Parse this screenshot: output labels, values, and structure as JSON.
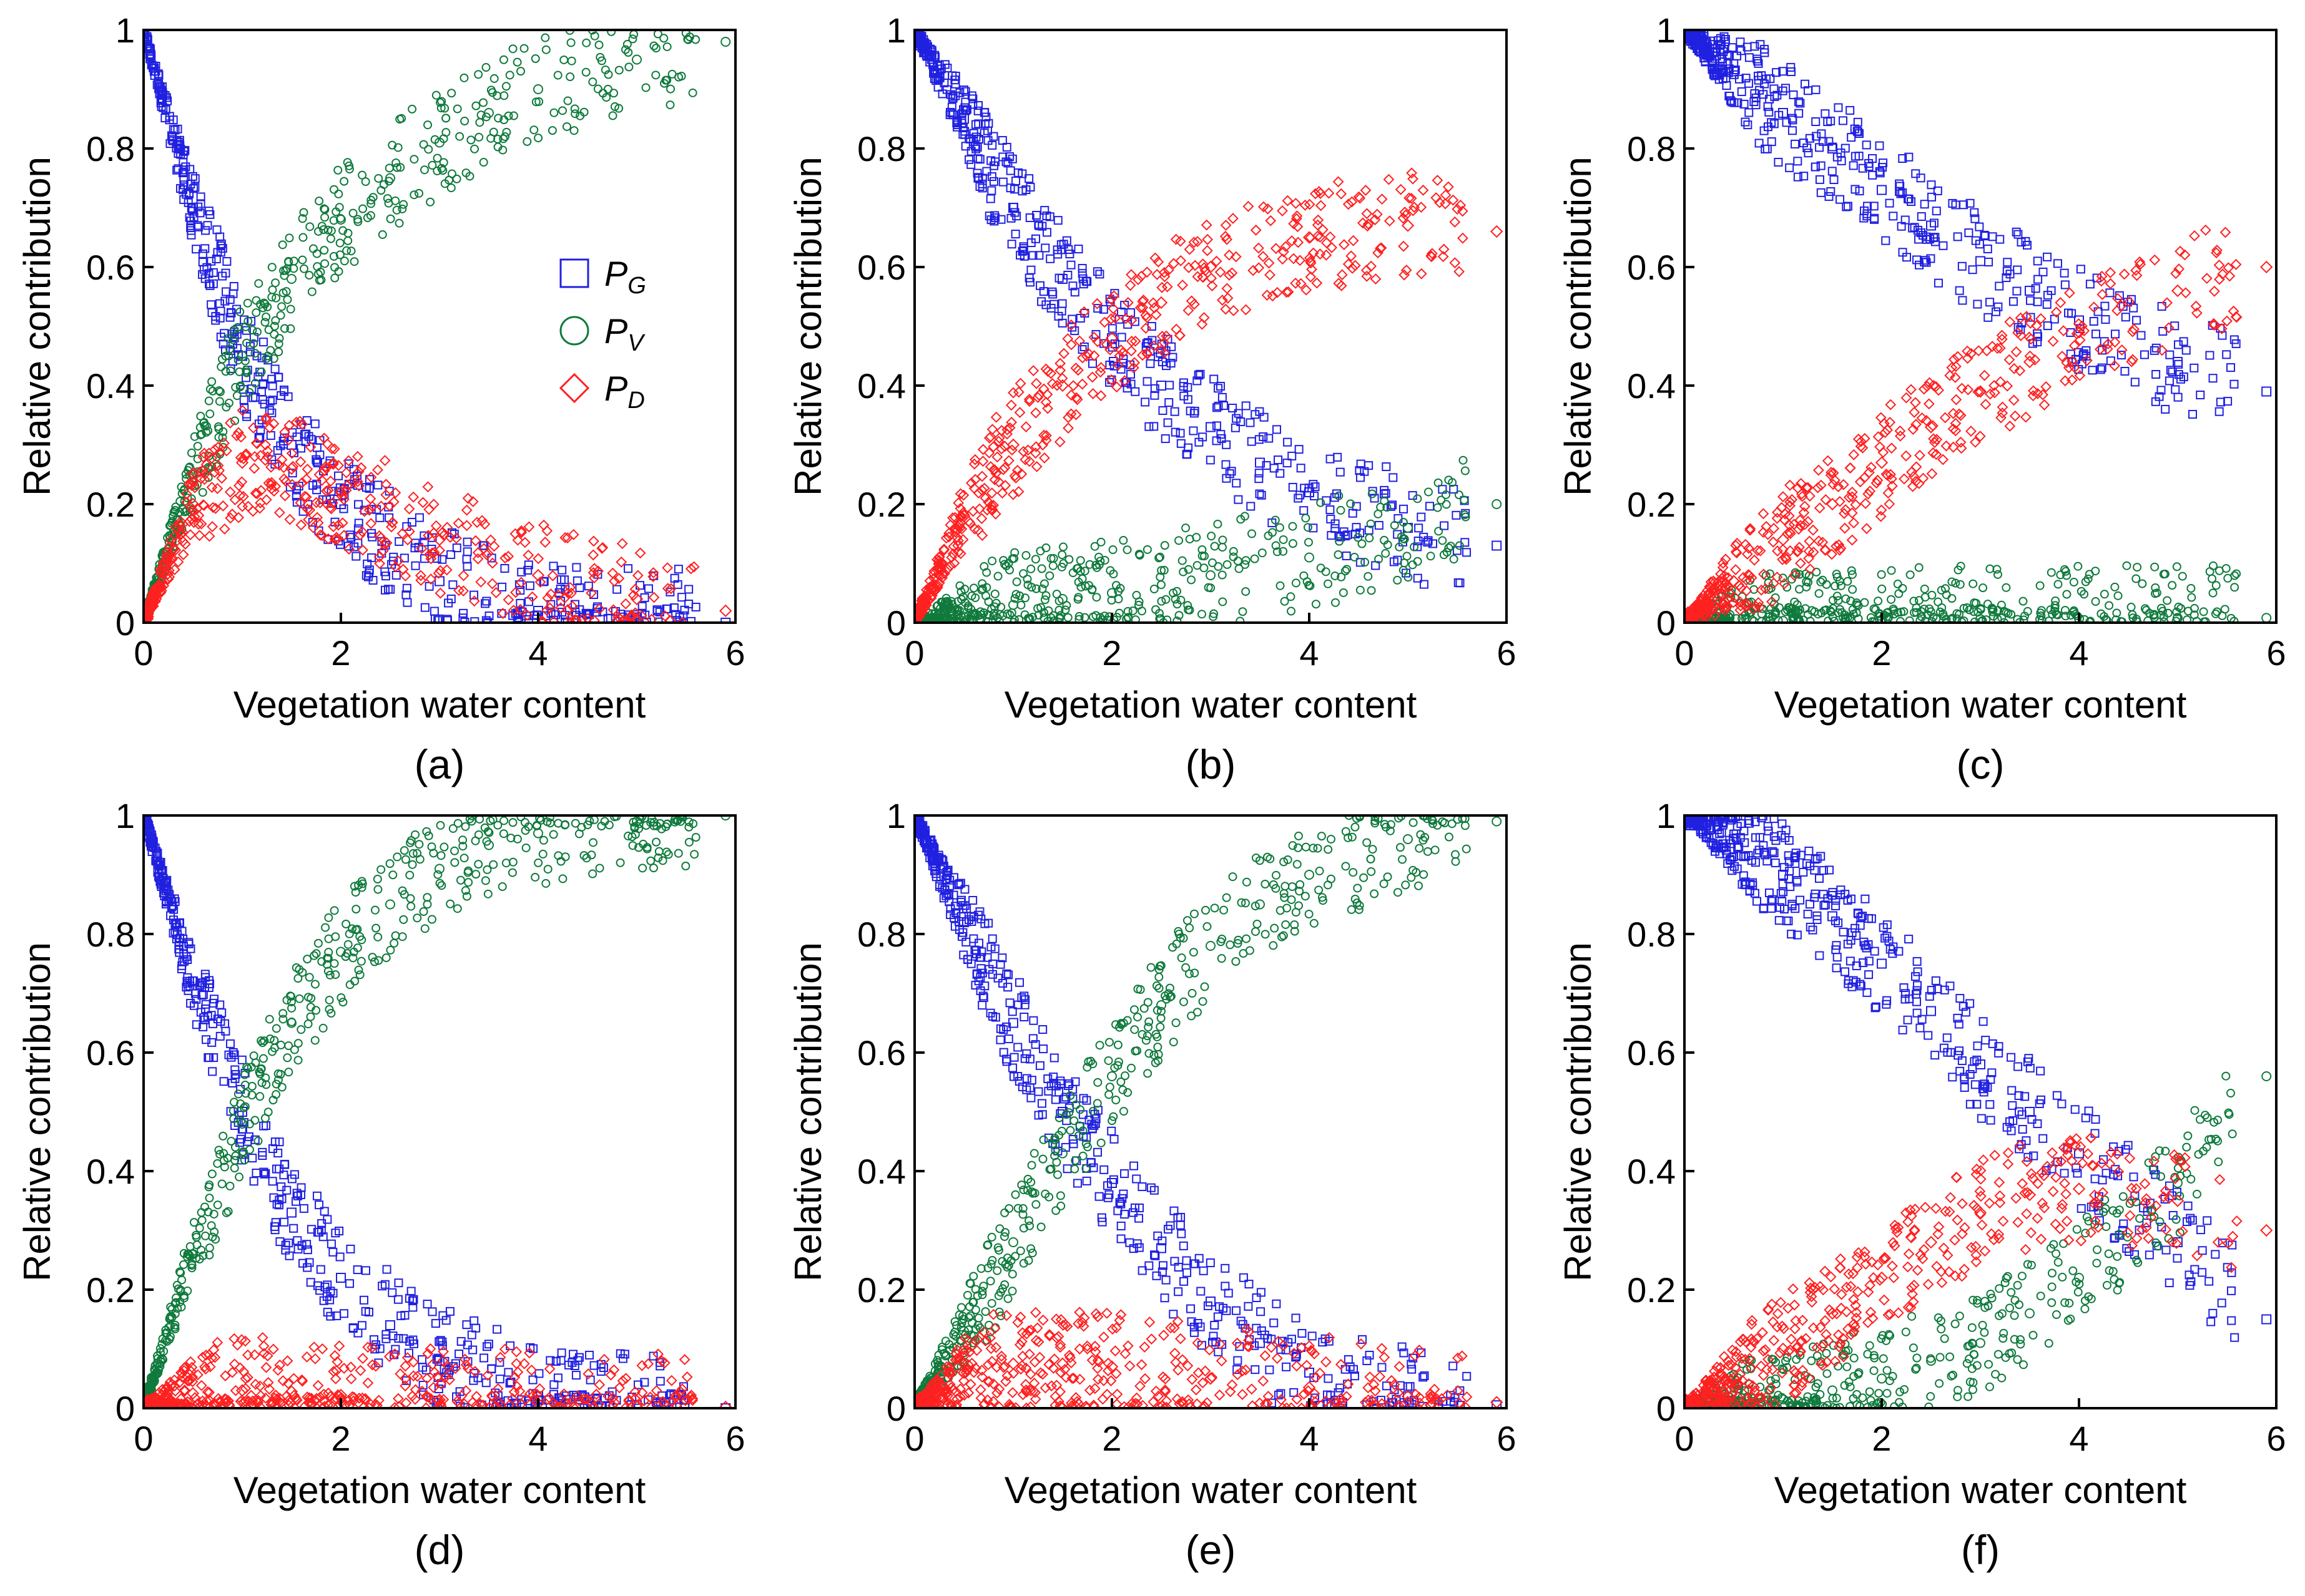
{
  "figure": {
    "colors": {
      "PG": "#2020e0",
      "PV": "#0f7a3c",
      "PD": "#ff2020",
      "axis": "#000000"
    },
    "legend": [
      {
        "key": "PG",
        "main": "P",
        "sub": "G",
        "marker": "square"
      },
      {
        "key": "PV",
        "main": "P",
        "sub": "V",
        "marker": "circle"
      },
      {
        "key": "PD",
        "main": "P",
        "sub": "D",
        "marker": "diamond"
      }
    ]
  },
  "chart_data": [
    {
      "type": "scatter",
      "panel": "(a)",
      "xlabel": "Vegetation water content",
      "ylabel": "Relative contribution",
      "xlim": [
        0,
        6
      ],
      "ylim": [
        0,
        1
      ],
      "xticks": [
        "0",
        "2",
        "4",
        "6"
      ],
      "yticks": [
        "0",
        "0.2",
        "0.4",
        "0.6",
        "0.8",
        "1"
      ],
      "series": [
        {
          "name": "PG",
          "x": [
            0,
            0.5,
            1,
            1.5,
            2,
            3,
            4,
            5,
            5.9
          ],
          "y": [
            1,
            0.7,
            0.45,
            0.3,
            0.2,
            0.07,
            0.02,
            0.005,
            0.0
          ]
        },
        {
          "name": "PV",
          "x": [
            0,
            0.5,
            1,
            1.5,
            2,
            2.5,
            3,
            3.5,
            4,
            5,
            5.9
          ],
          "y": [
            0,
            0.25,
            0.45,
            0.58,
            0.68,
            0.75,
            0.81,
            0.86,
            0.9,
            0.95,
            0.98
          ]
        },
        {
          "name": "PD",
          "x": [
            0,
            0.5,
            1,
            1.5,
            2,
            3,
            4,
            5,
            5.9
          ],
          "y": [
            0,
            0.2,
            0.27,
            0.26,
            0.22,
            0.14,
            0.08,
            0.04,
            0.02
          ]
        }
      ]
    },
    {
      "type": "scatter",
      "panel": "(b)",
      "xlabel": "Vegetation water content",
      "ylabel": "Relative contribution",
      "xlim": [
        0,
        6
      ],
      "ylim": [
        0,
        1
      ],
      "xticks": [
        "0",
        "2",
        "4",
        "6"
      ],
      "yticks": [
        "0",
        "0.2",
        "0.4",
        "0.6",
        "0.8",
        "1"
      ],
      "series": [
        {
          "name": "PG",
          "x": [
            0,
            0.5,
            1,
            1.5,
            2,
            2.5,
            3,
            3.5,
            4,
            5,
            5.9
          ],
          "y": [
            1,
            0.85,
            0.7,
            0.58,
            0.48,
            0.4,
            0.33,
            0.27,
            0.22,
            0.16,
            0.13
          ]
        },
        {
          "name": "PV",
          "x": [
            0,
            0.5,
            1,
            1.5,
            2,
            3,
            4,
            5,
            5.9
          ],
          "y": [
            0,
            0.01,
            0.03,
            0.04,
            0.05,
            0.08,
            0.11,
            0.16,
            0.2
          ]
        },
        {
          "name": "PD",
          "x": [
            0,
            0.5,
            1,
            1.5,
            2,
            2.5,
            3,
            4,
            5,
            5.9
          ],
          "y": [
            0,
            0.18,
            0.3,
            0.4,
            0.48,
            0.54,
            0.6,
            0.65,
            0.67,
            0.66
          ]
        }
      ]
    },
    {
      "type": "scatter",
      "panel": "(c)",
      "xlabel": "Vegetation water content",
      "ylabel": "Relative contribution",
      "xlim": [
        0,
        6
      ],
      "ylim": [
        0,
        1
      ],
      "xticks": [
        "0",
        "2",
        "4",
        "6"
      ],
      "yticks": [
        "0",
        "0.2",
        "0.4",
        "0.6",
        "0.8",
        "1"
      ],
      "series": [
        {
          "name": "PG",
          "x": [
            0,
            0.5,
            1,
            1.5,
            2,
            2.5,
            3,
            3.5,
            4,
            5,
            5.9
          ],
          "y": [
            1,
            0.93,
            0.86,
            0.8,
            0.73,
            0.67,
            0.61,
            0.56,
            0.51,
            0.44,
            0.39
          ]
        },
        {
          "name": "PV",
          "x": [
            0,
            1,
            2,
            3,
            4,
            5,
            5.9
          ],
          "y": [
            0,
            0.003,
            0.005,
            0.006,
            0.007,
            0.008,
            0.008
          ]
        },
        {
          "name": "PD",
          "x": [
            0,
            0.5,
            1,
            1.5,
            2,
            2.5,
            3,
            3.5,
            4,
            5,
            5.9
          ],
          "y": [
            0,
            0.07,
            0.14,
            0.2,
            0.27,
            0.33,
            0.39,
            0.44,
            0.49,
            0.56,
            0.6
          ]
        }
      ]
    },
    {
      "type": "scatter",
      "panel": "(d)",
      "xlabel": "Vegetation water content",
      "ylabel": "Relative contribution",
      "xlim": [
        0,
        6
      ],
      "ylim": [
        0,
        1
      ],
      "xticks": [
        "0",
        "2",
        "4",
        "6"
      ],
      "yticks": [
        "0",
        "0.2",
        "0.4",
        "0.6",
        "0.8",
        "1"
      ],
      "series": [
        {
          "name": "PG",
          "x": [
            0,
            0.5,
            1,
            1.5,
            2,
            2.5,
            3,
            4,
            5,
            5.9
          ],
          "y": [
            1,
            0.72,
            0.5,
            0.33,
            0.22,
            0.14,
            0.08,
            0.02,
            0.005,
            0.0
          ]
        },
        {
          "name": "PV",
          "x": [
            0,
            0.5,
            1,
            1.5,
            2,
            2.5,
            3,
            3.5,
            4,
            5,
            5.9
          ],
          "y": [
            0,
            0.26,
            0.48,
            0.65,
            0.77,
            0.85,
            0.91,
            0.95,
            0.97,
            0.99,
            1.0
          ]
        },
        {
          "name": "PD",
          "x": [
            0,
            0.5,
            1,
            1.5,
            2,
            3,
            4,
            5,
            5.9
          ],
          "y": [
            0,
            0.025,
            0.03,
            0.028,
            0.022,
            0.014,
            0.008,
            0.004,
            0.002
          ]
        }
      ]
    },
    {
      "type": "scatter",
      "panel": "(e)",
      "xlabel": "Vegetation water content",
      "ylabel": "Relative contribution",
      "xlim": [
        0,
        6
      ],
      "ylim": [
        0,
        1
      ],
      "xticks": [
        "0",
        "2",
        "4",
        "6"
      ],
      "yticks": [
        "0",
        "0.2",
        "0.4",
        "0.6",
        "0.8",
        "1"
      ],
      "series": [
        {
          "name": "PG",
          "x": [
            0,
            0.5,
            1,
            1.5,
            2,
            2.5,
            3,
            3.5,
            4,
            5,
            5.9
          ],
          "y": [
            1,
            0.82,
            0.65,
            0.5,
            0.38,
            0.27,
            0.18,
            0.11,
            0.06,
            0.02,
            0.005
          ]
        },
        {
          "name": "PV",
          "x": [
            0,
            0.5,
            1,
            1.5,
            2,
            2.5,
            3,
            3.5,
            4,
            5,
            5.9
          ],
          "y": [
            0,
            0.13,
            0.28,
            0.43,
            0.56,
            0.68,
            0.78,
            0.85,
            0.9,
            0.96,
            0.99
          ]
        },
        {
          "name": "PD",
          "x": [
            0,
            0.5,
            1,
            1.5,
            2,
            3,
            4,
            5,
            5.9
          ],
          "y": [
            0,
            0.06,
            0.075,
            0.075,
            0.07,
            0.05,
            0.035,
            0.02,
            0.01
          ]
        }
      ]
    },
    {
      "type": "scatter",
      "panel": "(f)",
      "xlabel": "Vegetation water content",
      "ylabel": "Relative contribution",
      "xlim": [
        0,
        6
      ],
      "ylim": [
        0,
        1
      ],
      "xticks": [
        "0",
        "2",
        "4",
        "6"
      ],
      "yticks": [
        "0",
        "0.2",
        "0.4",
        "0.6",
        "0.8",
        "1"
      ],
      "series": [
        {
          "name": "PG",
          "x": [
            0,
            0.5,
            1,
            1.5,
            2,
            2.5,
            3,
            3.5,
            4,
            5,
            5.9
          ],
          "y": [
            1,
            0.96,
            0.9,
            0.83,
            0.75,
            0.67,
            0.58,
            0.5,
            0.43,
            0.28,
            0.15
          ]
        },
        {
          "name": "PV",
          "x": [
            0,
            0.5,
            1,
            1.5,
            2,
            2.5,
            3,
            3.5,
            4,
            5,
            5.9
          ],
          "y": [
            0,
            0.005,
            0.015,
            0.03,
            0.05,
            0.08,
            0.11,
            0.16,
            0.22,
            0.38,
            0.56
          ]
        },
        {
          "name": "PD",
          "x": [
            0,
            0.5,
            1,
            1.5,
            2,
            2.5,
            3,
            3.5,
            4,
            5,
            5.9
          ],
          "y": [
            0,
            0.05,
            0.1,
            0.16,
            0.22,
            0.28,
            0.33,
            0.36,
            0.37,
            0.35,
            0.3
          ]
        }
      ]
    }
  ]
}
